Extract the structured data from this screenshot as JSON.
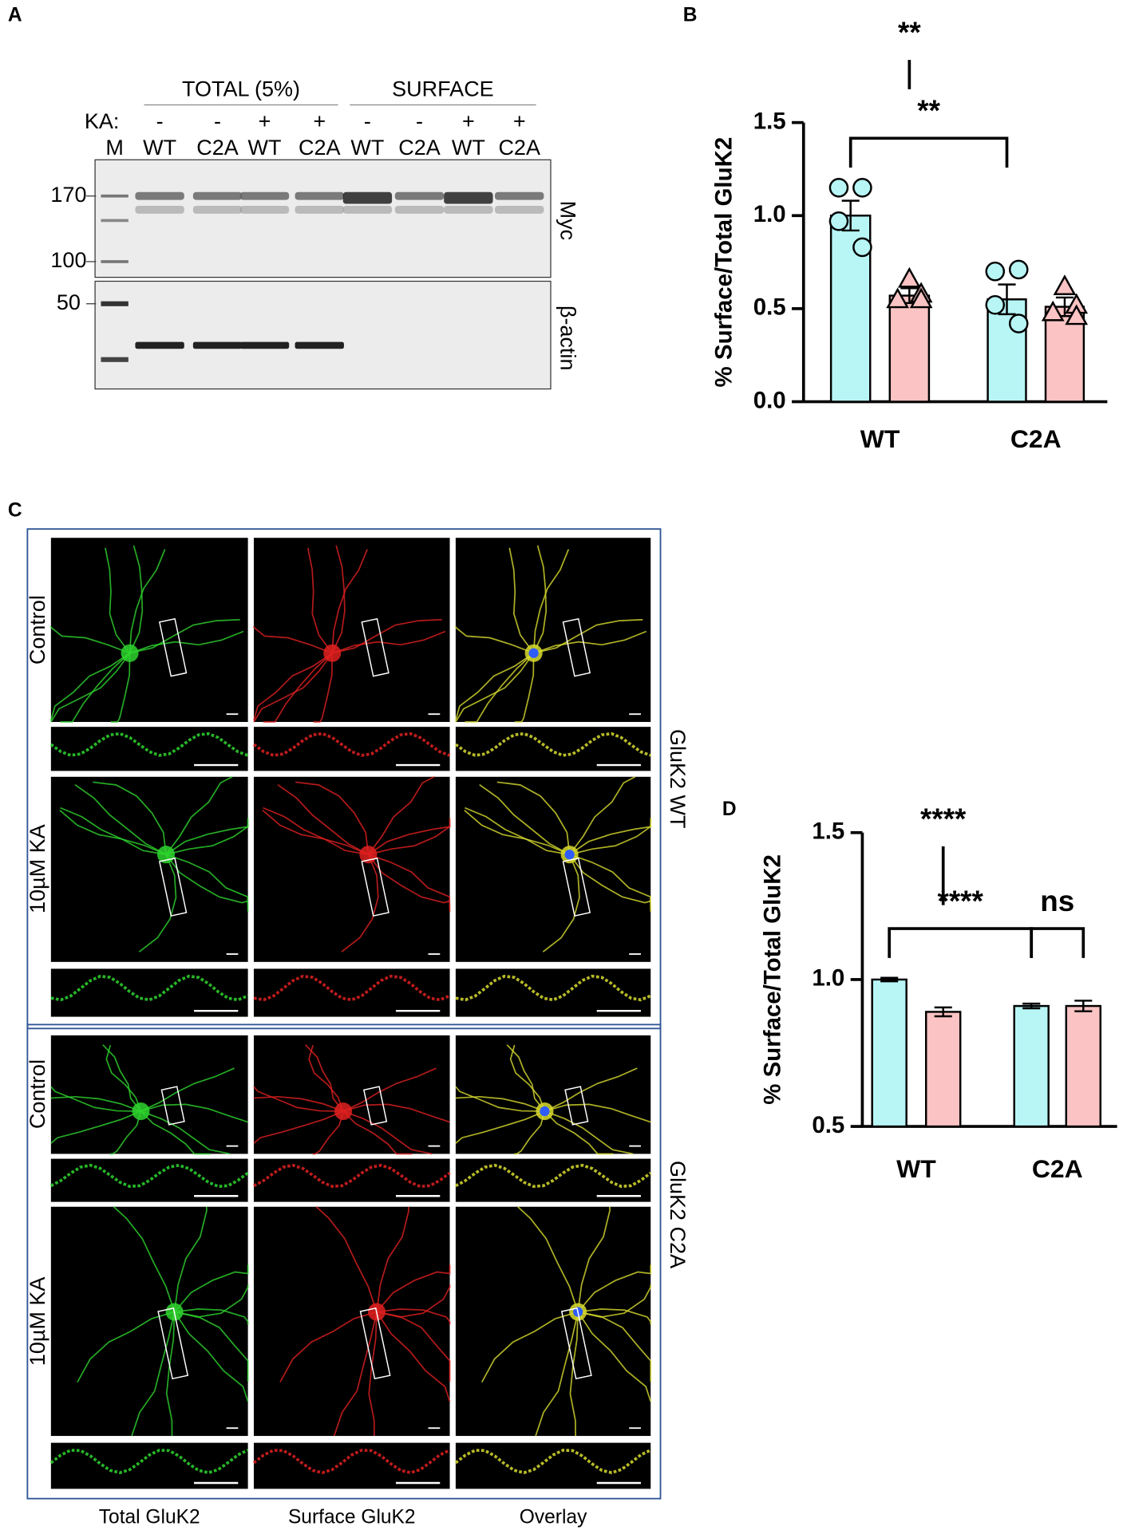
{
  "panels": {
    "a": "A",
    "b": "B",
    "c": "C",
    "d": "D"
  },
  "blot": {
    "headers": [
      "TOTAL (5%)",
      "SURFACE"
    ],
    "ka_label": "KA:",
    "ka_signs": [
      "-",
      "-",
      "+",
      "+",
      "-",
      "-",
      "+",
      "+"
    ],
    "marker_lane": "M",
    "lanes": [
      "WT",
      "C2A",
      "WT",
      "C2A",
      "WT",
      "C2A",
      "WT",
      "C2A"
    ],
    "markers": [
      "170",
      "100",
      "50"
    ],
    "blots": [
      "Myc",
      "β-actin"
    ]
  },
  "imaging": {
    "rows": [
      "Control",
      "10µM KA",
      "Control",
      "10µM KA"
    ],
    "groups": [
      "GluK2 WT",
      "GluK2 C2A"
    ],
    "columns": [
      "Total GluK2",
      "Surface GluK2",
      "Overlay"
    ]
  },
  "chart_data": [
    {
      "type": "bar",
      "ylabel": "% Surface/Total GluK2",
      "categories": [
        "WT",
        "C2A"
      ],
      "ylim": [
        0,
        1.5
      ],
      "yticks": [
        {
          "value": 0,
          "label": "0.0"
        },
        {
          "value": 0.5,
          "label": "0.5"
        },
        {
          "value": 1,
          "label": "1.0"
        },
        {
          "value": 1.5,
          "label": "1.5"
        }
      ],
      "series": [
        {
          "color": "#b8f6f6",
          "marker": "circle",
          "values": [
            1.0,
            0.55
          ],
          "errors": [
            0.08,
            0.08
          ],
          "points": [
            [
              1.15,
              1.15,
              0.97,
              0.83
            ],
            [
              0.7,
              0.71,
              0.52,
              0.42
            ]
          ]
        },
        {
          "color": "#fbc3c3",
          "marker": "triangle",
          "values": [
            0.57,
            0.51
          ],
          "errors": [
            0.04,
            0.05
          ],
          "points": [
            [
              0.66,
              0.58,
              0.55,
              0.55
            ],
            [
              0.62,
              0.52,
              0.48,
              0.46
            ]
          ]
        }
      ],
      "annotations": [
        "**",
        "**"
      ]
    },
    {
      "type": "bar",
      "ylabel": "% Surface/Total GluK2",
      "categories": [
        "WT",
        "C2A"
      ],
      "ylim": [
        0.5,
        1.5
      ],
      "yticks": [
        {
          "value": 0.5,
          "label": "0.5"
        },
        {
          "value": 1,
          "label": "1.0"
        },
        {
          "value": 1.5,
          "label": "1.5"
        }
      ],
      "series": [
        {
          "color": "#b8f6f6",
          "values": [
            1.0,
            0.91
          ],
          "errors": [
            0.006,
            0.008
          ]
        },
        {
          "color": "#fbc3c3",
          "values": [
            0.89,
            0.91
          ],
          "errors": [
            0.015,
            0.018
          ]
        }
      ],
      "annotations": [
        "****",
        "****",
        "ns"
      ]
    }
  ]
}
